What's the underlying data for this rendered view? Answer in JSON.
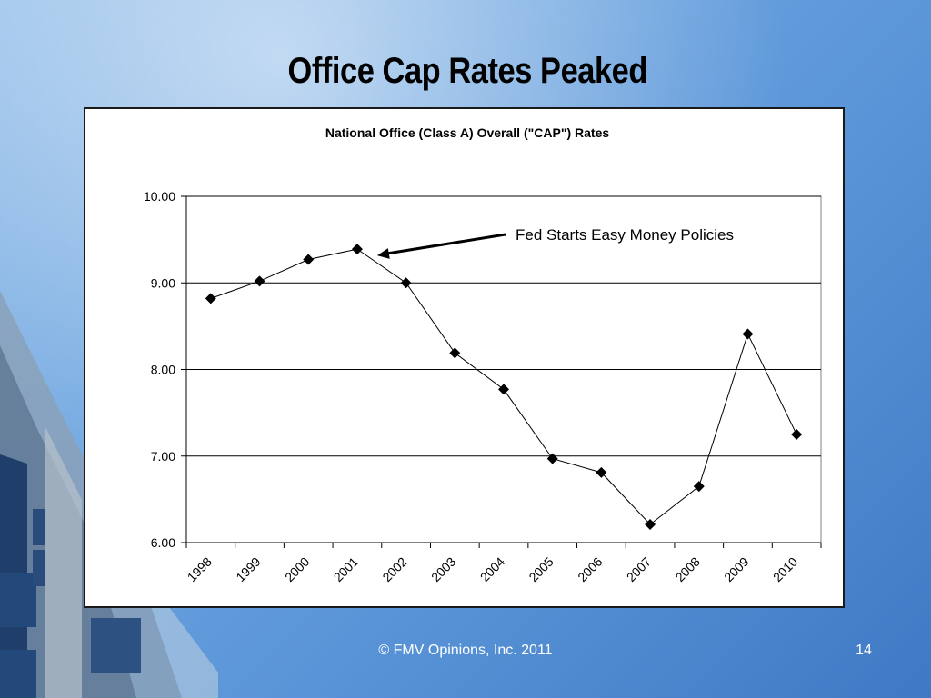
{
  "slide": {
    "title": "Office Cap Rates Peaked",
    "footer": "© FMV Opinions, Inc. 2011",
    "page_number": "14"
  },
  "colors": {
    "background": "#5a95d8",
    "panel": "#ffffff",
    "line": "#000000",
    "marker": "#000000"
  },
  "chart_data": {
    "type": "line",
    "title": "National Office (Class A) Overall (\"CAP\") Rates",
    "xlabel": "",
    "ylabel": "",
    "categories": [
      "1998",
      "1999",
      "2000",
      "2001",
      "2002",
      "2003",
      "2004",
      "2005",
      "2006",
      "2007",
      "2008",
      "2009",
      "2010"
    ],
    "series": [
      {
        "values": [
          8.82,
          9.02,
          9.27,
          9.39,
          9.0,
          8.19,
          7.77,
          6.97,
          6.81,
          6.21,
          6.65,
          8.41,
          7.25
        ]
      }
    ],
    "ylim": [
      6.0,
      10.0
    ],
    "yticks": [
      "6.00",
      "7.00",
      "8.00",
      "9.00",
      "10.00"
    ],
    "grid": true,
    "marker": "diamond",
    "annotation": {
      "text": "Fed Starts Easy Money Policies",
      "category": "2001",
      "value": 9.39
    }
  }
}
